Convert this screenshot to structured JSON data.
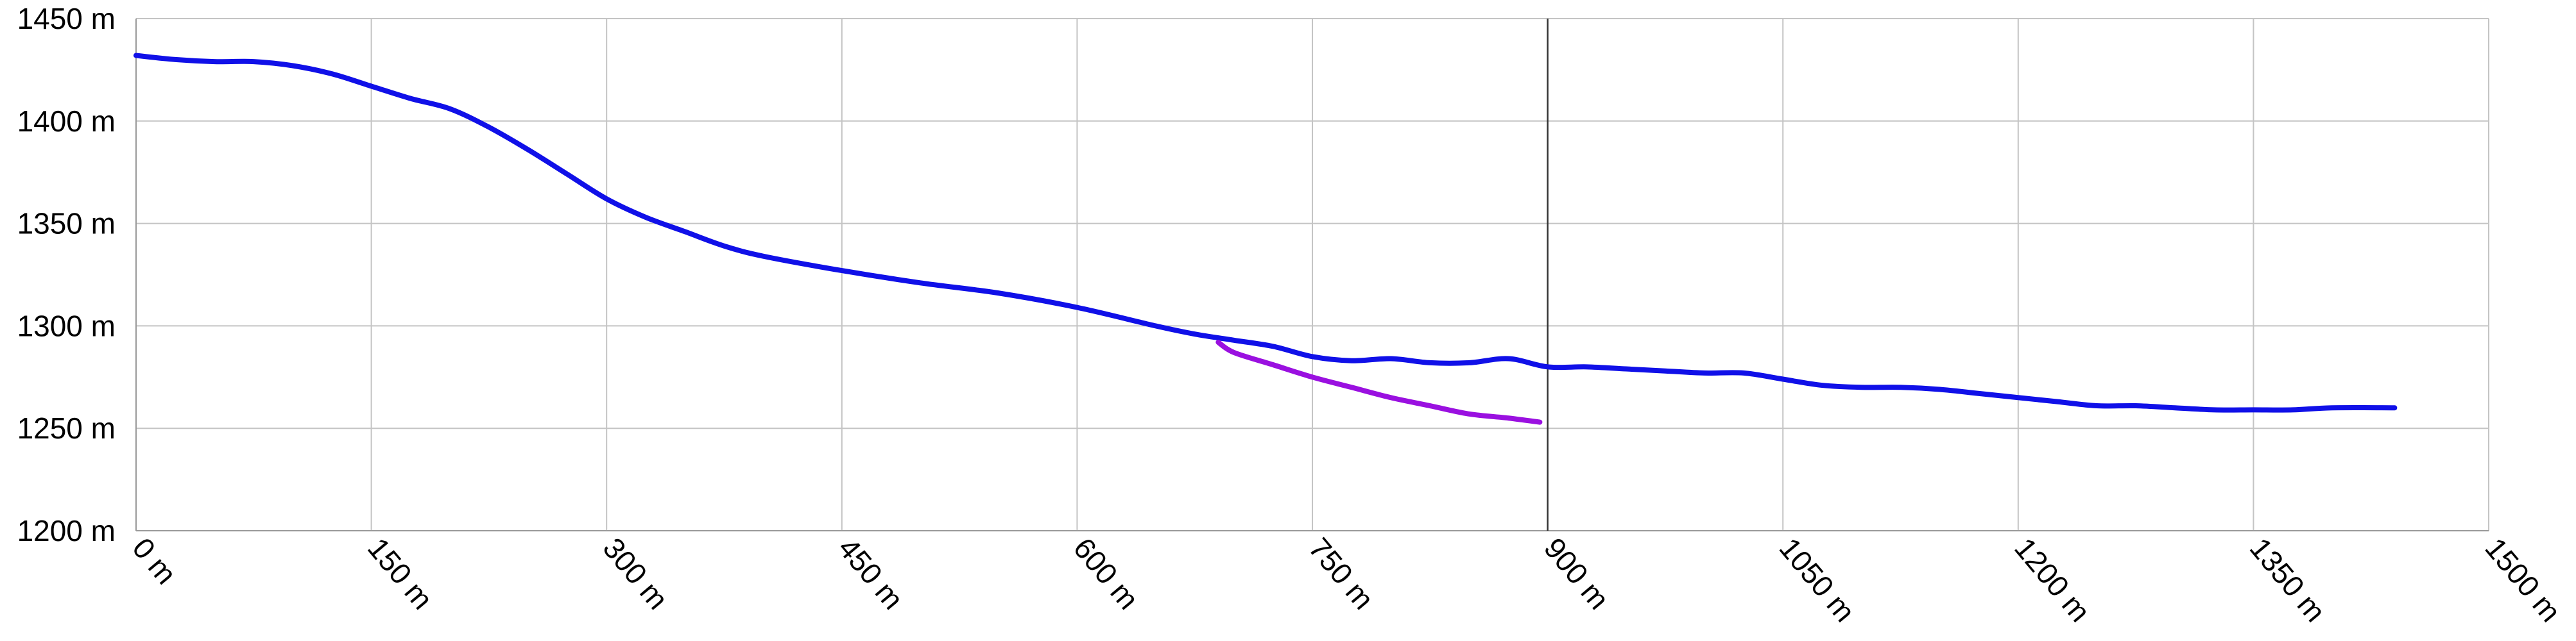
{
  "chart_data": {
    "type": "line",
    "title": "",
    "xlabel": "",
    "ylabel": "",
    "x_unit": "m",
    "y_unit": "m",
    "xlim": [
      0,
      1500
    ],
    "ylim": [
      1200,
      1450
    ],
    "x_ticks": [
      0,
      150,
      300,
      450,
      600,
      750,
      900,
      1050,
      1200,
      1350,
      1500
    ],
    "y_ticks": [
      1200,
      1250,
      1300,
      1350,
      1400,
      1450
    ],
    "x_tick_labels": [
      "0 m",
      "150 m",
      "300 m",
      "450 m",
      "600 m",
      "750 m",
      "900 m",
      "1050 m",
      "1200 m",
      "1350 m",
      "1500 m"
    ],
    "y_tick_labels": [
      "1200 m",
      "1250 m",
      "1300 m",
      "1350 m",
      "1400 m",
      "1450 m"
    ],
    "grid": true,
    "marker_x": 900,
    "series": [
      {
        "color": "#1010e8",
        "x": [
          0,
          25,
          50,
          75,
          100,
          125,
          150,
          175,
          200,
          225,
          250,
          275,
          300,
          325,
          350,
          375,
          400,
          450,
          500,
          550,
          600,
          650,
          675,
          700,
          725,
          750,
          775,
          800,
          825,
          850,
          875,
          900,
          925,
          950,
          975,
          1000,
          1025,
          1050,
          1075,
          1100,
          1125,
          1150,
          1175,
          1200,
          1225,
          1250,
          1275,
          1300,
          1325,
          1350,
          1375,
          1400,
          1440
        ],
        "y": [
          1432,
          1430,
          1429,
          1429,
          1427,
          1423,
          1417,
          1411,
          1406,
          1397,
          1386,
          1374,
          1362,
          1353,
          1346,
          1339,
          1334,
          1327,
          1321,
          1316,
          1309,
          1300,
          1296,
          1293,
          1290,
          1285,
          1283,
          1284,
          1282,
          1282,
          1284,
          1280,
          1280,
          1279,
          1278,
          1277,
          1277,
          1274,
          1271,
          1270,
          1270,
          1269,
          1267,
          1265,
          1263,
          1261,
          1261,
          1260,
          1259,
          1259,
          1259,
          1260,
          1260
        ]
      },
      {
        "color": "#9a10e0",
        "x": [
          690,
          700,
          725,
          750,
          775,
          800,
          825,
          850,
          875,
          895
        ],
        "y": [
          1292,
          1287,
          1281,
          1275,
          1270,
          1265,
          1261,
          1257,
          1255,
          1253
        ]
      }
    ]
  }
}
